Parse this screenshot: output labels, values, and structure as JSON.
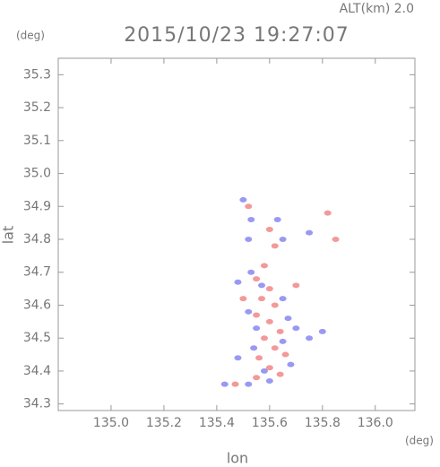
{
  "chart_data": {
    "type": "scatter",
    "title": "2015/10/23 19:27:07",
    "subtitle": "ALT(km) 2.0",
    "y_unit": "(deg)",
    "x_unit": "(deg)",
    "xlabel": "lon",
    "ylabel": "lat",
    "xlim": [
      134.8,
      136.15
    ],
    "ylim": [
      34.28,
      35.35
    ],
    "xticks": [
      {
        "value": 135,
        "label": "135.0"
      },
      135.2,
      135.4,
      135.6,
      135.8,
      {
        "value": 136,
        "label": "136.0"
      }
    ],
    "yticks": [
      34.3,
      34.4,
      34.5,
      34.6,
      34.7,
      34.8,
      34.9,
      {
        "value": 35,
        "label": "35.0"
      },
      35.1,
      35.2,
      35.3
    ],
    "series": [
      {
        "color": "#f08080",
        "x": [
          135.52,
          135.6,
          135.82,
          135.62,
          135.58,
          135.55,
          135.6,
          135.57,
          135.62,
          135.55,
          135.6,
          135.64,
          135.58,
          135.62,
          135.56,
          135.6,
          135.64,
          135.55,
          135.47,
          135.7,
          135.85,
          135.5,
          135.66
        ],
        "values": [
          34.9,
          34.83,
          34.88,
          34.78,
          34.72,
          34.68,
          34.65,
          34.62,
          34.6,
          34.57,
          34.55,
          34.52,
          34.5,
          34.47,
          34.44,
          34.41,
          34.39,
          34.38,
          34.36,
          34.66,
          34.8,
          34.62,
          34.45
        ]
      },
      {
        "color": "#8080f0",
        "x": [
          135.5,
          135.53,
          135.63,
          135.65,
          135.52,
          135.75,
          135.48,
          135.53,
          135.57,
          135.65,
          135.52,
          135.67,
          135.55,
          135.7,
          135.54,
          135.65,
          135.48,
          135.68,
          135.58,
          135.43,
          135.52,
          135.6,
          135.75,
          135.8
        ],
        "values": [
          34.92,
          34.86,
          34.86,
          34.8,
          34.8,
          34.82,
          34.67,
          34.7,
          34.66,
          34.62,
          34.58,
          34.56,
          34.53,
          34.53,
          34.47,
          34.49,
          34.44,
          34.42,
          34.4,
          34.36,
          34.36,
          34.37,
          34.5,
          34.52
        ]
      }
    ]
  }
}
